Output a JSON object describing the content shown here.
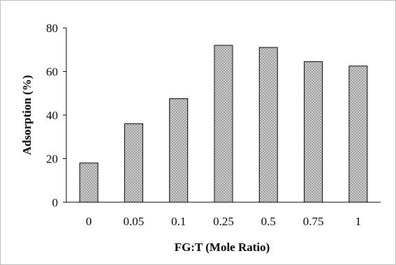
{
  "chart_data": {
    "type": "bar",
    "categories": [
      "0",
      "0.05",
      "0.1",
      "0.25",
      "0.5",
      "0.75",
      "1"
    ],
    "values": [
      18,
      36,
      47.5,
      72,
      71,
      64.5,
      62.5
    ],
    "title": "",
    "xlabel": "FG:T (Mole Ratio)",
    "ylabel": "Adsorption (%)",
    "ylim": [
      0,
      80
    ],
    "yticks": [
      "0",
      "20",
      "40",
      "60",
      "80"
    ],
    "grid": false,
    "bar_fill": "dotted gray pattern",
    "colors": {
      "bar_fill": "#d0d0d0",
      "bar_dots": "#7a7a7a",
      "bar_edge": "#000000",
      "frame": "#bfbfbf"
    }
  }
}
